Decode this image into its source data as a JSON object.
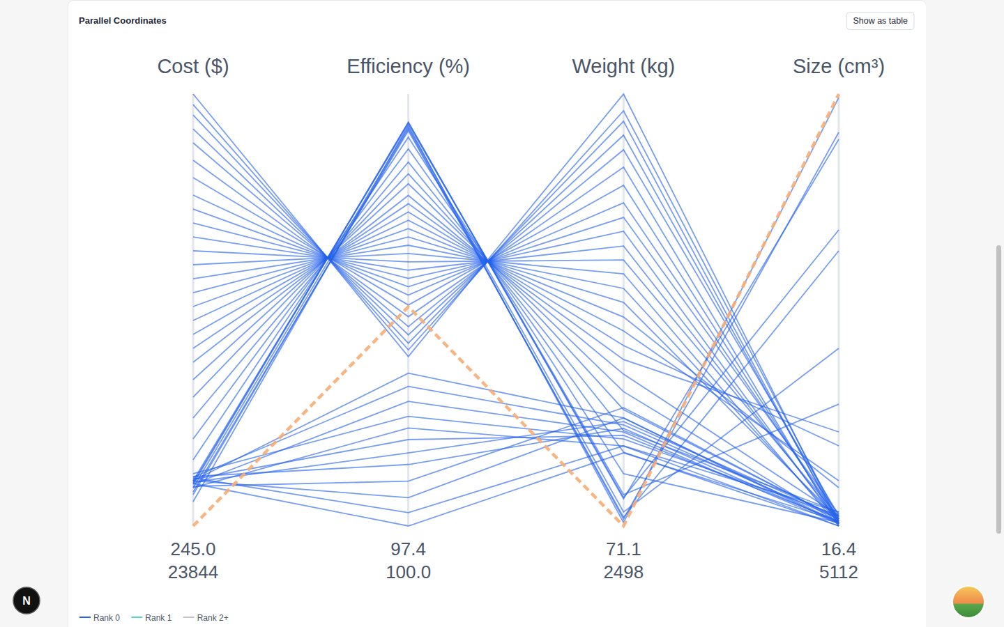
{
  "page": {
    "button": "Show as table",
    "badge": "N"
  },
  "chart_data": {
    "type": "parallel_coordinates",
    "title": "Parallel Coordinates",
    "legend": "bottom-left",
    "legend_entries": [
      {
        "name": "Rank 0",
        "color": "#2563eb"
      },
      {
        "name": "Rank 1",
        "color": "#5ccfc3"
      },
      {
        "name": "Rank 2+",
        "color": "#c4c4c4"
      }
    ],
    "dimensions": [
      {
        "label": "Cost ($)",
        "ylim": [
          245,
          23844
        ],
        "yticks": [
          {
            "value": 245,
            "label": "245.0"
          },
          23844
        ]
      },
      {
        "label": "Efficiency (%)",
        "ylim": [
          97.4,
          100
        ],
        "yticks": [
          97.4,
          {
            "value": 100,
            "label": "100.0"
          }
        ]
      },
      {
        "label": "Weight (kg)",
        "ylim": [
          71.1,
          2498
        ],
        "yticks": [
          71.1,
          2498
        ]
      },
      {
        "label": "Size (cm³)",
        "ylim": [
          16.4,
          5112
        ],
        "yticks": [
          16.4,
          5112
        ]
      }
    ],
    "series": [
      {
        "color": "#2563eb",
        "values": [
          23844,
          98.42,
          2498,
          57.5
        ]
      },
      {
        "color": "#2563eb",
        "values": [
          23271,
          98.46,
          2404,
          98.6
        ]
      },
      {
        "color": "#2563eb",
        "values": [
          22700,
          98.5,
          2345,
          41.1
        ]
      },
      {
        "color": "#2563eb",
        "values": [
          21939,
          98.55,
          2267,
          73.9
        ]
      },
      {
        "color": "#2563eb",
        "values": [
          21178,
          98.6,
          2185,
          139.7
        ]
      },
      {
        "color": "#2563eb",
        "values": [
          20227,
          98.66,
          2087,
          16.4
        ]
      },
      {
        "color": "#2563eb",
        "values": [
          19275,
          98.73,
          1985,
          57.5
        ]
      },
      {
        "color": "#2563eb",
        "values": [
          18324,
          98.79,
          1887,
          98.6
        ]
      },
      {
        "color": "#2563eb",
        "values": [
          17562,
          98.84,
          1805,
          156.1
        ]
      },
      {
        "color": "#2563eb",
        "values": [
          16801,
          98.89,
          1727,
          41.1
        ]
      },
      {
        "color": "#2563eb",
        "values": [
          16040,
          98.94,
          1644,
          73.9
        ]
      },
      {
        "color": "#2563eb",
        "values": [
          15279,
          98.99,
          1566,
          123.2
        ]
      },
      {
        "color": "#2563eb",
        "values": [
          14518,
          99.04,
          1488,
          16.4
        ]
      },
      {
        "color": "#2563eb",
        "values": [
          13756,
          99.09,
          1406,
          57.5
        ]
      },
      {
        "color": "#2563eb",
        "values": [
          12995,
          99.14,
          1327,
          98.6
        ]
      },
      {
        "color": "#2563eb",
        "values": [
          12234,
          99.19,
          1245,
          468.4
        ]
      },
      {
        "color": "#2563eb",
        "values": [
          11473,
          99.24,
          1167,
          550.6
        ]
      },
      {
        "color": "#2563eb",
        "values": [
          10712,
          99.29,
          1085,
          961.6
        ]
      },
      {
        "color": "#2563eb",
        "values": [
          9950,
          99.34,
          1006,
          1126
        ]
      },
      {
        "color": "#2563eb",
        "values": [
          9189,
          99.39,
          924,
          139.7
        ]
      },
      {
        "color": "#2563eb",
        "values": [
          8238,
          99.46,
          826,
          57.5
        ]
      },
      {
        "color": "#2563eb",
        "values": [
          7286,
          99.52,
          725,
          98.6
        ]
      },
      {
        "color": "#2563eb",
        "values": [
          6144,
          99.59,
          607,
          180.8
        ]
      },
      {
        "color": "#2563eb",
        "values": [
          5003,
          99.67,
          486,
          16.4
        ]
      },
      {
        "color": "#2563eb",
        "values": [
          3861,
          99.74,
          365,
          57.5
        ]
      },
      {
        "color": "#2563eb",
        "values": [
          2719,
          99.82,
          247,
          1454
        ]
      },
      {
        "color": "#2563eb",
        "values": [
          2605,
          99.83,
          231,
          3509
        ]
      },
      {
        "color": "#2563eb",
        "values": [
          2529,
          99.83,
          224,
          4578
        ]
      },
      {
        "color": "#2563eb",
        "values": [
          1577,
          99.81,
          90.7,
          5071
        ]
      },
      {
        "color": "#2563eb",
        "values": [
          1958,
          99.79,
          110.2,
          4660
        ]
      },
      {
        "color": "#2563eb",
        "values": [
          2338,
          99.8,
          150,
          2112
        ]
      },
      {
        "color": "#2563eb",
        "values": [
          2100,
          99.78,
          120,
          3263
        ]
      },
      {
        "color": "#2563eb",
        "values": [
          2719,
          98.32,
          678,
          57.5
        ]
      },
      {
        "color": "#2563eb",
        "values": [
          2909,
          98.24,
          639,
          98.6
        ]
      },
      {
        "color": "#2563eb",
        "values": [
          2529,
          98.15,
          599,
          41.1
        ]
      },
      {
        "color": "#2563eb",
        "values": [
          3100,
          98.06,
          560,
          139.7
        ]
      },
      {
        "color": "#2563eb",
        "values": [
          2338,
          97.99,
          521,
          16.4
        ]
      },
      {
        "color": "#2563eb",
        "values": [
          2795,
          97.92,
          580,
          73.9
        ]
      },
      {
        "color": "#2563eb",
        "values": [
          2643,
          97.84,
          658,
          123.2
        ]
      },
      {
        "color": "#2563eb",
        "values": [
          2947,
          97.77,
          619,
          57.5
        ]
      },
      {
        "color": "#2563eb",
        "values": [
          2414,
          97.67,
          736,
          98.6
        ]
      },
      {
        "color": "#2563eb",
        "values": [
          2719,
          97.57,
          678,
          41.1
        ]
      },
      {
        "color": "#2563eb",
        "values": [
          2871,
          97.48,
          521,
          180.8
        ]
      },
      {
        "color": "#2563eb",
        "values": [
          2567,
          97.4,
          482,
          73.9
        ]
      },
      {
        "color": "#f6ad75",
        "line_style": "dashed",
        "values": [
          245,
          98.72,
          71.1,
          5112
        ]
      }
    ]
  }
}
